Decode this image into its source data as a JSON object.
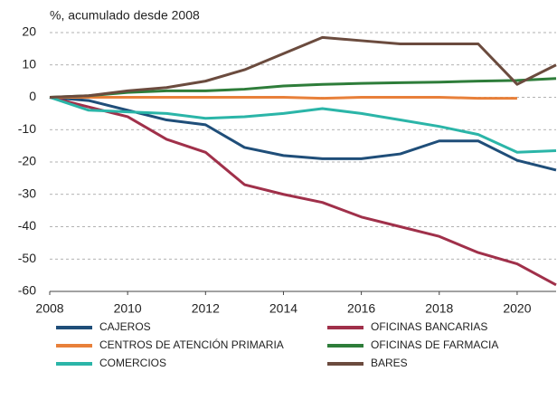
{
  "chart_data": {
    "type": "line",
    "y_label": "%, acumulado desde 2008",
    "x": [
      2008,
      2009,
      2010,
      2011,
      2012,
      2013,
      2014,
      2015,
      2016,
      2017,
      2018,
      2019,
      2020,
      2021
    ],
    "xlim": [
      2008,
      2021
    ],
    "xticks": [
      2008,
      2010,
      2012,
      2014,
      2016,
      2018,
      2020
    ],
    "ylim": [
      -60,
      20
    ],
    "yticks": [
      20,
      10,
      0,
      -10,
      -20,
      -30,
      -40,
      -50,
      -60
    ],
    "grid": true,
    "series": [
      {
        "name": "CAJEROS",
        "color": "#1f4e79",
        "values": [
          0,
          -1,
          -4,
          -7,
          -8.5,
          -15.5,
          -18,
          -19,
          -19,
          -17.5,
          -13.5,
          -13.5,
          -19.5,
          -22.5
        ]
      },
      {
        "name": "OFICINAS BANCARIAS",
        "color": "#a0304a",
        "values": [
          0,
          -3,
          -6,
          -13,
          -17,
          -27,
          -30,
          -32.5,
          -37,
          -40,
          -43,
          -48,
          -51.5,
          -58
        ]
      },
      {
        "name": "CENTROS DE ATENCIÓN PRIMARIA",
        "color": "#e8803a",
        "values": [
          0,
          0,
          0,
          0,
          0,
          0,
          0,
          -0.3,
          0,
          0,
          0,
          -0.3,
          -0.3,
          null
        ]
      },
      {
        "name": "OFICINAS DE FARMACIA",
        "color": "#2e7d3a",
        "values": [
          0,
          0.5,
          1.5,
          2,
          2,
          2.5,
          3.5,
          4,
          4.3,
          4.5,
          4.7,
          5,
          5.2,
          5.8
        ]
      },
      {
        "name": "COMERCIOS",
        "color": "#2bb5a8",
        "values": [
          0,
          -4,
          -4.5,
          -5,
          -6.5,
          -6,
          -5,
          -3.5,
          -5,
          -7,
          -9,
          -11.5,
          -17,
          -16.5
        ]
      },
      {
        "name": "BARES",
        "color": "#6b4b3e",
        "values": [
          0,
          0.5,
          2,
          3,
          5,
          8.5,
          13.5,
          18.5,
          17.5,
          16.5,
          16.5,
          16.5,
          4,
          10
        ]
      }
    ]
  }
}
